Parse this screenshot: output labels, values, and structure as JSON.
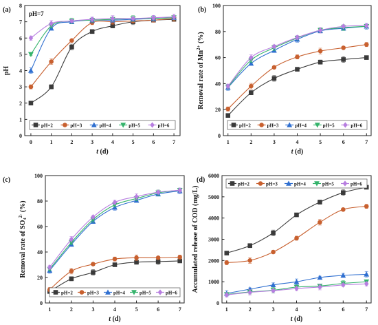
{
  "colors": {
    "pH=2": "#3a3a3a",
    "pH=3": "#c8602f",
    "pH=4": "#2f6fd0",
    "pH=5": "#34b36b",
    "pH=6": "#b77ee0"
  },
  "chart_data": [
    {
      "id": "a",
      "panel_label": "(a)",
      "annotation": "pH=7",
      "type": "line",
      "xlabel": "t (d)",
      "ylabel": "pH",
      "x": [
        0,
        1,
        2,
        3,
        4,
        5,
        6,
        7
      ],
      "xlim": [
        -0.3,
        7.3
      ],
      "ylim": [
        0,
        8
      ],
      "xticks": [
        0,
        1,
        2,
        3,
        4,
        5,
        6,
        7
      ],
      "yticks": [
        0,
        1,
        2,
        3,
        4,
        5,
        6,
        7,
        8
      ],
      "legend_position": "bottom",
      "series": [
        {
          "name": "pH=2",
          "marker": "square",
          "values": [
            2.0,
            3.0,
            5.45,
            6.4,
            6.75,
            7.0,
            7.1,
            7.15
          ]
        },
        {
          "name": "pH=3",
          "marker": "circle",
          "values": [
            3.0,
            4.55,
            5.85,
            6.95,
            7.0,
            7.05,
            7.1,
            7.2
          ]
        },
        {
          "name": "pH=4",
          "marker": "triangle",
          "values": [
            4.0,
            6.6,
            7.0,
            7.1,
            7.1,
            7.15,
            7.2,
            7.25
          ]
        },
        {
          "name": "pH=5",
          "marker": "triangle-down",
          "values": [
            5.0,
            6.75,
            7.05,
            7.1,
            7.15,
            7.2,
            7.2,
            7.25
          ]
        },
        {
          "name": "pH=6",
          "marker": "diamond",
          "values": [
            6.0,
            6.9,
            7.05,
            7.15,
            7.2,
            7.2,
            7.25,
            7.3
          ]
        }
      ]
    },
    {
      "id": "b",
      "panel_label": "(b)",
      "type": "line",
      "xlabel": "t (d)",
      "ylabel": "Removal rate of Mn²⁺ (%)",
      "x": [
        1,
        2,
        3,
        4,
        5,
        6,
        7
      ],
      "xlim": [
        0.8,
        7.2
      ],
      "ylim": [
        0,
        100
      ],
      "xticks": [
        1,
        2,
        3,
        4,
        5,
        6,
        7
      ],
      "yticks": [
        0,
        20,
        40,
        60,
        80,
        100
      ],
      "legend_position": "bottom",
      "series": [
        {
          "name": "pH=2",
          "marker": "square",
          "values": [
            15.5,
            33,
            44,
            51,
            56.5,
            58.5,
            60
          ]
        },
        {
          "name": "pH=3",
          "marker": "circle",
          "values": [
            20.5,
            38,
            52.5,
            60.5,
            65,
            67.5,
            70
          ]
        },
        {
          "name": "pH=4",
          "marker": "triangle",
          "values": [
            37,
            55.5,
            65.5,
            74,
            80.5,
            82.5,
            84
          ]
        },
        {
          "name": "pH=5",
          "marker": "triangle-down",
          "values": [
            37.5,
            58,
            67.5,
            75,
            81,
            83,
            84
          ]
        },
        {
          "name": "pH=6",
          "marker": "diamond",
          "values": [
            38,
            60,
            68.5,
            75.5,
            81,
            84,
            84.5
          ]
        }
      ]
    },
    {
      "id": "c",
      "panel_label": "(c)",
      "type": "line",
      "xlabel": "t (d)",
      "ylabel": "Removal rate of SO₄²⁻ (%)",
      "x": [
        1,
        2,
        3,
        4,
        5,
        6,
        7
      ],
      "xlim": [
        0.8,
        7.2
      ],
      "ylim": [
        0,
        100
      ],
      "xticks": [
        1,
        2,
        3,
        4,
        5,
        6,
        7
      ],
      "yticks": [
        0,
        20,
        40,
        60,
        80,
        100
      ],
      "legend_position": "bottom",
      "series": [
        {
          "name": "pH=2",
          "marker": "square",
          "values": [
            9,
            19,
            24,
            30,
            32,
            32.5,
            33
          ]
        },
        {
          "name": "pH=3",
          "marker": "circle",
          "values": [
            10.5,
            25,
            30.5,
            34.5,
            35.5,
            35.5,
            36
          ]
        },
        {
          "name": "pH=4",
          "marker": "triangle",
          "values": [
            25.5,
            46,
            64,
            75,
            80.5,
            85.5,
            88
          ]
        },
        {
          "name": "pH=5",
          "marker": "triangle-down",
          "values": [
            26.5,
            47.5,
            65.5,
            77,
            82,
            86.5,
            88.5
          ]
        },
        {
          "name": "pH=6",
          "marker": "diamond",
          "values": [
            28,
            50,
            67.5,
            79,
            83.5,
            87,
            88.5
          ]
        }
      ]
    },
    {
      "id": "d",
      "panel_label": "(d)",
      "type": "line",
      "xlabel": "t (d)",
      "ylabel": "Accumulated release of COD (mg/L)",
      "x": [
        1,
        2,
        3,
        4,
        5,
        6,
        7
      ],
      "xlim": [
        0.8,
        7.2
      ],
      "ylim": [
        0,
        6000
      ],
      "xticks": [
        1,
        2,
        3,
        4,
        5,
        6,
        7
      ],
      "yticks": [
        0,
        1000,
        2000,
        3000,
        4000,
        5000,
        6000
      ],
      "legend_position": "top",
      "series": [
        {
          "name": "pH=2",
          "marker": "square",
          "values": [
            2350,
            2700,
            3300,
            4150,
            4750,
            5200,
            5450
          ]
        },
        {
          "name": "pH=3",
          "marker": "circle",
          "values": [
            1900,
            2000,
            2400,
            3050,
            3800,
            4400,
            4550
          ]
        },
        {
          "name": "pH=4",
          "marker": "triangle",
          "values": [
            450,
            650,
            850,
            1000,
            1200,
            1300,
            1350
          ]
        },
        {
          "name": "pH=5",
          "marker": "triangle-down",
          "values": [
            400,
            520,
            600,
            750,
            800,
            920,
            1000
          ]
        },
        {
          "name": "pH=6",
          "marker": "diamond",
          "values": [
            380,
            500,
            580,
            680,
            750,
            850,
            900
          ]
        }
      ]
    }
  ]
}
